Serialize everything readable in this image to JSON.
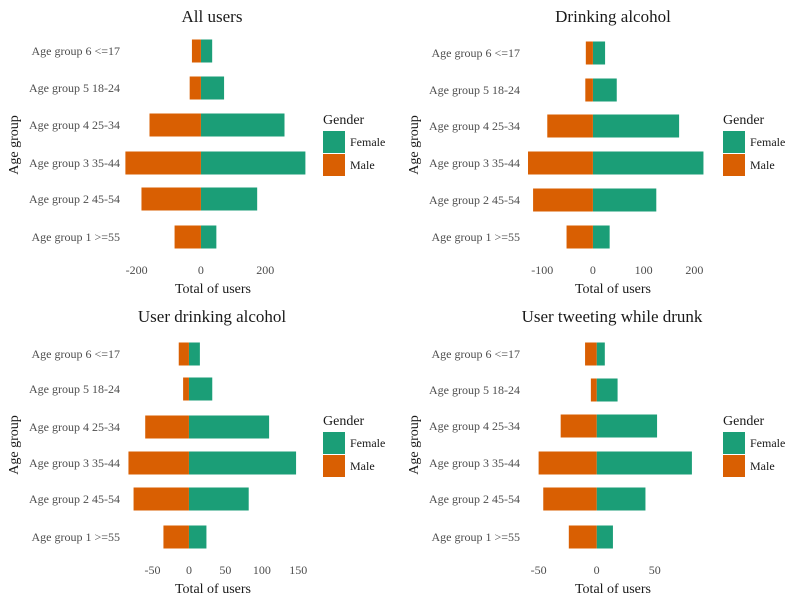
{
  "chart_data": [
    {
      "type": "bar",
      "orientation": "horizontal-diverging",
      "title": "All users",
      "xlabel": "Total of users",
      "ylabel": "Age group",
      "xticks": [
        -200,
        0,
        200
      ],
      "xlim": [
        -230,
        330
      ],
      "categories": [
        "Age group 1 >=55",
        "Age group 2 45-54",
        "Age group 3 35-44",
        "Age group 4 25-34",
        "Age group 5 18-24",
        "Age group 6 <=17"
      ],
      "series": [
        {
          "name": "Female",
          "values": [
            48,
            175,
            325,
            260,
            72,
            35
          ]
        },
        {
          "name": "Male",
          "values": [
            -82,
            -185,
            -235,
            -160,
            -35,
            -28
          ]
        }
      ],
      "legend_title": "Gender",
      "legend_position": "right",
      "grid": false
    },
    {
      "type": "bar",
      "orientation": "horizontal-diverging",
      "title": "Drinking alcohol",
      "xlabel": "Total of users",
      "ylabel": "Age group",
      "xticks": [
        -100,
        0,
        100,
        200
      ],
      "xlim": [
        -130,
        225
      ],
      "categories": [
        "Age group 1 >=55",
        "Age group 2 45-54",
        "Age group 3 35-44",
        "Age group 4 25-34",
        "Age group 5 18-24",
        "Age group 6 <=17"
      ],
      "series": [
        {
          "name": "Female",
          "values": [
            33,
            125,
            218,
            170,
            47,
            24
          ]
        },
        {
          "name": "Male",
          "values": [
            -52,
            -118,
            -128,
            -90,
            -15,
            -14
          ]
        }
      ],
      "legend_title": "Gender",
      "legend_position": "right",
      "grid": false
    },
    {
      "type": "bar",
      "orientation": "horizontal-diverging",
      "title": "User drinking alcohol",
      "xlabel": "Total of users",
      "ylabel": "Age group",
      "xticks": [
        -50,
        0,
        50,
        100,
        150
      ],
      "xlim": [
        -85,
        162
      ],
      "categories": [
        "Age group 1 >=55",
        "Age group 2 45-54",
        "Age group 3 35-44",
        "Age group 4 25-34",
        "Age group 5 18-24",
        "Age group 6 <=17"
      ],
      "series": [
        {
          "name": "Female",
          "values": [
            24,
            82,
            147,
            110,
            32,
            15
          ]
        },
        {
          "name": "Male",
          "values": [
            -35,
            -76,
            -83,
            -60,
            -8,
            -14
          ]
        }
      ],
      "legend_title": "Gender",
      "legend_position": "right",
      "grid": false
    },
    {
      "type": "bar",
      "orientation": "horizontal-diverging",
      "title": "User tweeting while drunk",
      "xlabel": "Total of users",
      "ylabel": "Age group",
      "xticks": [
        -50,
        0,
        50
      ],
      "xlim": [
        -60,
        95
      ],
      "categories": [
        "Age group 1 >=55",
        "Age group 2 45-54",
        "Age group 3 35-44",
        "Age group 4 25-34",
        "Age group 5 18-24",
        "Age group 6 <=17"
      ],
      "series": [
        {
          "name": "Female",
          "values": [
            14,
            42,
            82,
            52,
            18,
            7
          ]
        },
        {
          "name": "Male",
          "values": [
            -24,
            -46,
            -50,
            -31,
            -5,
            -10
          ]
        }
      ],
      "legend_title": "Gender",
      "legend_position": "right",
      "grid": false
    }
  ],
  "colors": {
    "Female": "#1b9e77",
    "Male": "#d95f02"
  }
}
